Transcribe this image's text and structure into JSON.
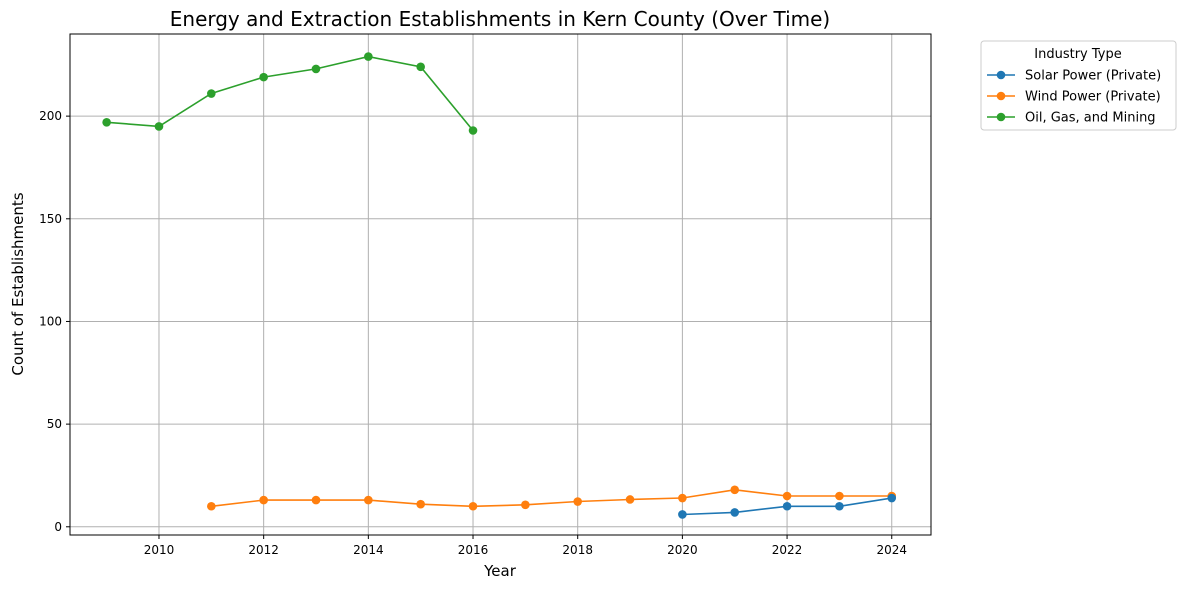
{
  "chart_data": {
    "type": "line",
    "title": "Energy and Extraction Establishments in Kern County (Over Time)",
    "xlabel": "Year",
    "ylabel": "Count of Establishments",
    "xlim": [
      2008.3,
      2024.75
    ],
    "ylim": [
      -4,
      240
    ],
    "xticks": [
      2010,
      2012,
      2014,
      2016,
      2018,
      2020,
      2022,
      2024
    ],
    "yticks": [
      0,
      50,
      100,
      150,
      200
    ],
    "grid": true,
    "legend": {
      "title": "Industry Type",
      "placement": "outside-top-right"
    },
    "series": [
      {
        "name": "Solar Power (Private)",
        "color": "#1f77b4",
        "x": [
          2020,
          2021,
          2022,
          2023,
          2024
        ],
        "y": [
          6,
          7,
          10,
          10,
          14
        ]
      },
      {
        "name": "Wind Power (Private)",
        "color": "#ff7f0e",
        "x": [
          2011,
          2012,
          2013,
          2014,
          2015,
          2016,
          2017,
          2018,
          2019,
          2020,
          2021,
          2022,
          2023,
          2024
        ],
        "y": [
          10,
          13,
          13,
          13,
          11,
          10,
          10.7,
          12.3,
          13.3,
          14,
          18,
          15,
          15,
          15
        ]
      },
      {
        "name": "Oil, Gas, and Mining",
        "color": "#2ca02c",
        "x": [
          2009,
          2010,
          2011,
          2012,
          2013,
          2014,
          2015,
          2016
        ],
        "y": [
          197,
          195,
          211,
          219,
          223,
          229,
          224,
          193
        ]
      }
    ]
  }
}
